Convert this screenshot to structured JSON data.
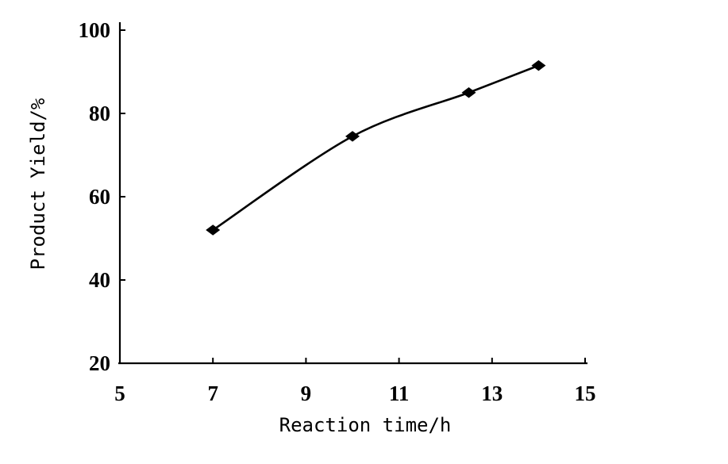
{
  "chart_data": {
    "type": "line",
    "title": "",
    "xlabel": "Reaction time/h",
    "ylabel": "Product Yield/%",
    "xlim": [
      5,
      15
    ],
    "ylim": [
      20,
      100
    ],
    "x_ticks": [
      "5",
      "7",
      "9",
      "11",
      "13",
      "15"
    ],
    "y_ticks": [
      "20",
      "40",
      "60",
      "80",
      "100"
    ],
    "grid": false,
    "legend": "none",
    "series": [
      {
        "marker": "diamond",
        "color": "#000000",
        "x": [
          7,
          10,
          12.5,
          14
        ],
        "y": [
          52,
          74.5,
          85,
          91.5
        ]
      }
    ]
  }
}
